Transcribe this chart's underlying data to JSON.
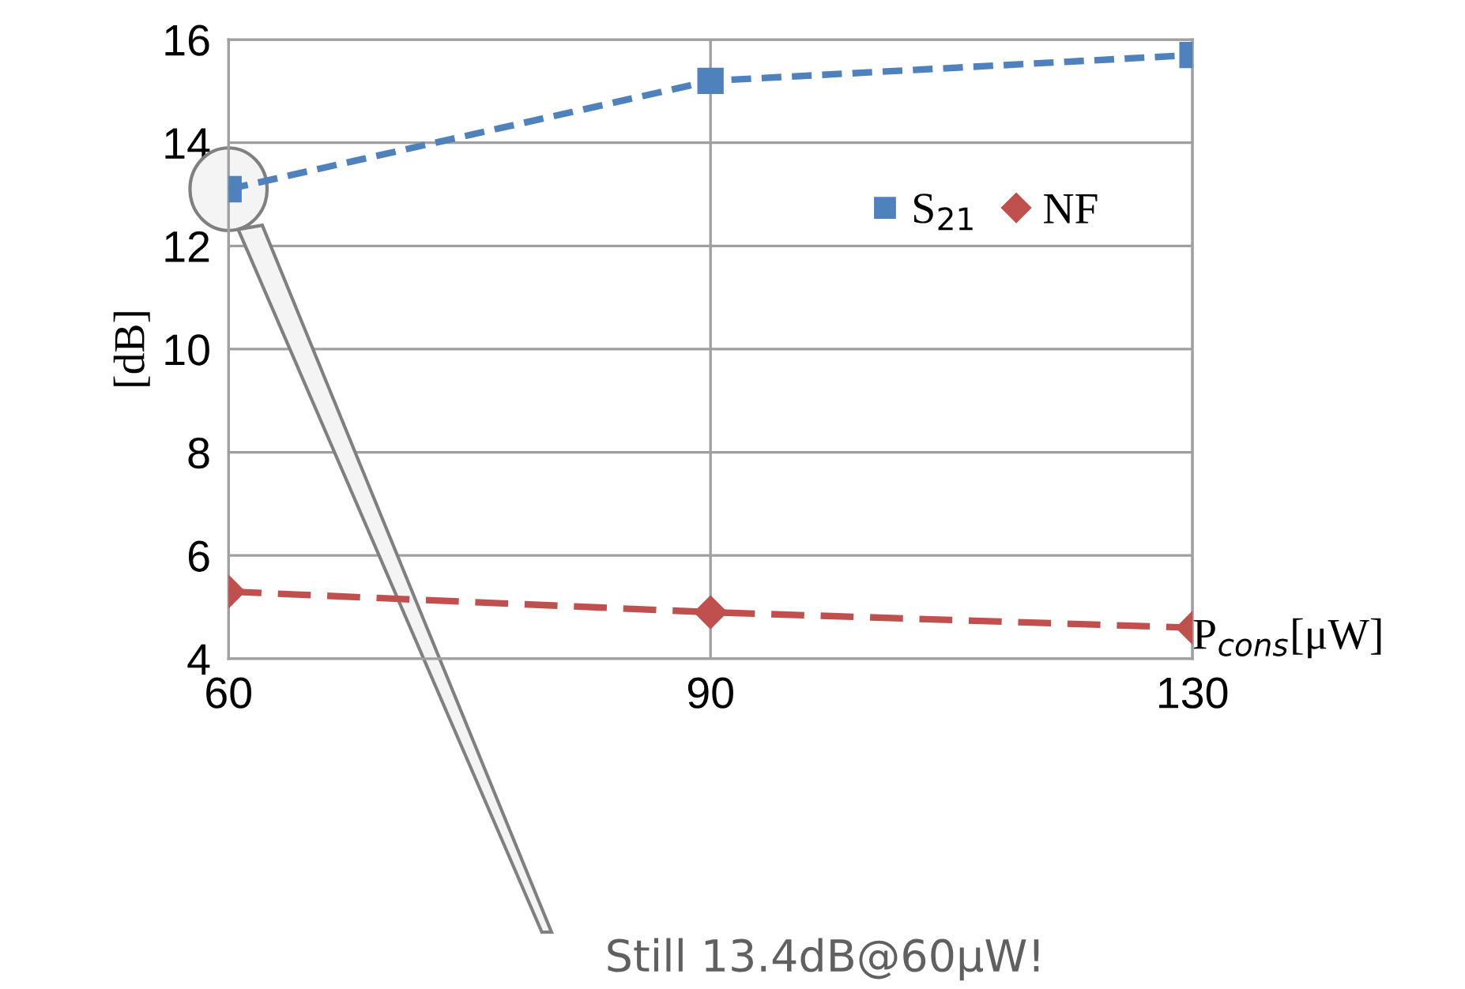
{
  "chart_data": {
    "type": "line",
    "ylabel": "[dB]",
    "xlabel": "P$_{cons}$[μW]",
    "categories": [
      "60",
      "90",
      "130"
    ],
    "series": [
      {
        "name": "S$_{21}$",
        "color": "#4f81bd",
        "marker": "square",
        "values": [
          13.1,
          15.2,
          15.7
        ]
      },
      {
        "name": "NF",
        "color": "#c0504d",
        "marker": "diamond",
        "values": [
          5.3,
          4.9,
          4.6
        ]
      }
    ],
    "ylim": [
      4,
      16
    ],
    "yticks": [
      4,
      6,
      8,
      10,
      12,
      14,
      16
    ],
    "grid": true,
    "legend": "top right",
    "line_style": "dashed",
    "annotations": [
      "Still 13.4dB@60μW!"
    ]
  }
}
